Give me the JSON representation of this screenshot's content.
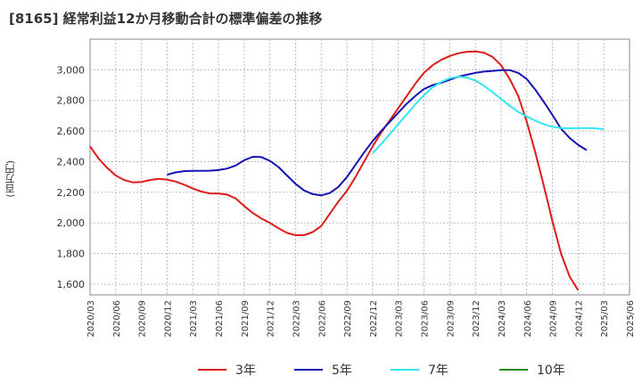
{
  "chart_data": {
    "type": "line",
    "title": "[8165]  経常利益12か月移動合計の標準偏差の推移",
    "ylabel": "(百万円)",
    "xlabel": "",
    "ylim": [
      1530,
      3200
    ],
    "yticks": [
      1600,
      1800,
      2000,
      2200,
      2400,
      2600,
      2800,
      3000
    ],
    "ytick_labels": [
      "1,600",
      "1,800",
      "2,000",
      "2,200",
      "2,400",
      "2,600",
      "2,800",
      "3,000"
    ],
    "xticks": [
      "2020/03",
      "2020/06",
      "2020/09",
      "2020/12",
      "2021/03",
      "2021/06",
      "2021/09",
      "2021/12",
      "2022/03",
      "2022/06",
      "2022/09",
      "2022/12",
      "2023/03",
      "2023/06",
      "2023/09",
      "2023/12",
      "2024/03",
      "2024/06",
      "2024/09",
      "2024/12",
      "2025/03",
      "2025/06"
    ],
    "grid": true,
    "legend_position": "bottom",
    "series": [
      {
        "name": "3年",
        "color": "#dd1c1c",
        "start": "2020/03",
        "values": [
          2500,
          2420,
          2360,
          2310,
          2280,
          2265,
          2268,
          2280,
          2288,
          2283,
          2270,
          2250,
          2225,
          2205,
          2193,
          2192,
          2185,
          2160,
          2110,
          2065,
          2030,
          2000,
          1965,
          1935,
          1920,
          1920,
          1940,
          1980,
          2060,
          2140,
          2210,
          2300,
          2400,
          2500,
          2590,
          2670,
          2750,
          2830,
          2910,
          2980,
          3030,
          3065,
          3090,
          3108,
          3118,
          3120,
          3112,
          3085,
          3030,
          2940,
          2830,
          2660,
          2460,
          2240,
          2010,
          1800,
          1650,
          1560
        ]
      },
      {
        "name": "5年",
        "color": "#1414b4",
        "start": "2020/12",
        "values": [
          2315,
          2330,
          2338,
          2340,
          2340,
          2341,
          2345,
          2355,
          2375,
          2410,
          2432,
          2430,
          2405,
          2365,
          2310,
          2255,
          2212,
          2188,
          2180,
          2195,
          2235,
          2300,
          2380,
          2460,
          2535,
          2600,
          2660,
          2720,
          2780,
          2830,
          2875,
          2900,
          2915,
          2935,
          2955,
          2968,
          2980,
          2988,
          2993,
          2998,
          2998,
          2980,
          2940,
          2870,
          2790,
          2705,
          2615,
          2555,
          2510,
          2475
        ]
      },
      {
        "name": "7年",
        "color": "#33e6f2",
        "start": "2022/12",
        "values": [
          2455,
          2515,
          2580,
          2645,
          2710,
          2775,
          2835,
          2885,
          2920,
          2945,
          2955,
          2950,
          2930,
          2895,
          2855,
          2810,
          2765,
          2725,
          2695,
          2668,
          2645,
          2628,
          2620,
          2618,
          2620,
          2620,
          2618,
          2612
        ]
      },
      {
        "name": "10年",
        "color": "#1d8a1d",
        "start": "",
        "values": []
      }
    ]
  }
}
